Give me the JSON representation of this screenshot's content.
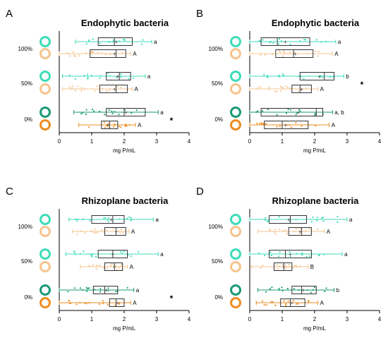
{
  "colors": {
    "green_light": "#3fdcb8",
    "green_dark": "#1a9a76",
    "orange_light": "#f6c48f",
    "orange_dark": "#ef8c22",
    "box_stroke": "#333333",
    "axis": "#000000"
  },
  "chart_data": [
    {
      "panel": "A",
      "title": "Endophytic bacteria",
      "type": "box",
      "xlabel": "mg P/mL",
      "xlim": [
        0,
        4
      ],
      "xticks": [
        "0",
        "1",
        "2",
        "3",
        "4"
      ],
      "groups": [
        "100%",
        "50%",
        "0%"
      ],
      "significance_marks": [
        {
          "group": "0%",
          "label": "*"
        }
      ],
      "series": [
        {
          "group": "100%",
          "series_color": "green_light",
          "min": 0.5,
          "q1": 1.2,
          "median": 1.7,
          "q3": 2.25,
          "max": 2.85,
          "mean": 1.75,
          "letter": "a"
        },
        {
          "group": "100%",
          "series_color": "orange_light",
          "min": 0.0,
          "q1": 0.95,
          "median": 1.75,
          "q3": 2.05,
          "max": 2.2,
          "mean": 1.7,
          "letter": "A"
        },
        {
          "group": "50%",
          "series_color": "green_light",
          "min": 0.1,
          "q1": 1.45,
          "median": 1.85,
          "q3": 2.2,
          "max": 2.65,
          "mean": 1.8,
          "letter": "a"
        },
        {
          "group": "50%",
          "series_color": "orange_light",
          "min": 0.1,
          "q1": 1.25,
          "median": 1.75,
          "q3": 2.1,
          "max": 2.25,
          "mean": 1.7,
          "letter": "A"
        },
        {
          "group": "0%",
          "series_color": "green_dark",
          "min": 0.45,
          "q1": 1.45,
          "median": 2.0,
          "q3": 2.65,
          "max": 3.05,
          "mean": 2.05,
          "letter": "a"
        },
        {
          "group": "0%",
          "series_color": "orange_dark",
          "min": 0.6,
          "q1": 1.3,
          "median": 1.55,
          "q3": 1.8,
          "max": 2.35,
          "mean": 1.5,
          "letter": "A"
        }
      ]
    },
    {
      "panel": "B",
      "title": "Endophytic bacteria",
      "type": "box",
      "xlabel": "mg P/mL",
      "xlim": [
        0,
        4
      ],
      "xticks": [
        "0",
        "1",
        "2",
        "3",
        "4"
      ],
      "groups": [
        "100%",
        "50%",
        "0%"
      ],
      "significance_marks": [
        {
          "group": "50%",
          "label": "*"
        }
      ],
      "series": [
        {
          "group": "100%",
          "series_color": "green_light",
          "min": 0.0,
          "q1": 0.35,
          "median": 0.85,
          "q3": 1.85,
          "max": 2.65,
          "mean": 1.1,
          "letter": "a"
        },
        {
          "group": "100%",
          "series_color": "orange_light",
          "min": 0.0,
          "q1": 0.8,
          "median": 1.35,
          "q3": 1.95,
          "max": 2.55,
          "mean": 1.4,
          "letter": "A"
        },
        {
          "group": "50%",
          "series_color": "green_light",
          "min": 0.0,
          "q1": 1.55,
          "median": 2.3,
          "q3": 2.6,
          "max": 2.9,
          "mean": 2.15,
          "letter": "b"
        },
        {
          "group": "50%",
          "series_color": "orange_light",
          "min": 0.0,
          "q1": 1.3,
          "median": 1.55,
          "q3": 1.9,
          "max": 2.1,
          "mean": 1.6,
          "letter": "A"
        },
        {
          "group": "0%",
          "series_color": "green_dark",
          "min": 0.0,
          "q1": 0.35,
          "median": 2.05,
          "q3": 2.25,
          "max": 2.55,
          "mean": 1.5,
          "letter": "a, b"
        },
        {
          "group": "0%",
          "series_color": "orange_dark",
          "min": 0.0,
          "q1": 0.45,
          "median": 1.0,
          "q3": 1.8,
          "max": 2.45,
          "mean": 1.1,
          "letter": "A"
        }
      ]
    },
    {
      "panel": "C",
      "title": "Rhizoplane bacteria",
      "type": "box",
      "xlabel": "mg P/mL",
      "xlim": [
        0,
        4
      ],
      "xticks": [
        "0",
        "1",
        "2",
        "3",
        "4"
      ],
      "groups": [
        "100%",
        "50%",
        "0%"
      ],
      "significance_marks": [
        {
          "group": "0%",
          "label": "*"
        }
      ],
      "series": [
        {
          "group": "100%",
          "series_color": "green_light",
          "min": 0.3,
          "q1": 1.0,
          "median": 1.65,
          "q3": 2.0,
          "max": 2.9,
          "mean": 1.6,
          "letter": "a"
        },
        {
          "group": "100%",
          "series_color": "orange_light",
          "min": 0.4,
          "q1": 1.4,
          "median": 1.75,
          "q3": 2.05,
          "max": 2.15,
          "mean": 1.75,
          "letter": "A"
        },
        {
          "group": "50%",
          "series_color": "green_light",
          "min": 0.2,
          "q1": 1.2,
          "median": 1.65,
          "q3": 2.1,
          "max": 3.05,
          "mean": 1.65,
          "letter": "a"
        },
        {
          "group": "50%",
          "series_color": "orange_light",
          "min": 0.65,
          "q1": 1.4,
          "median": 1.7,
          "q3": 1.95,
          "max": 2.1,
          "mean": 1.7,
          "letter": "A"
        },
        {
          "group": "0%",
          "series_color": "green_dark",
          "min": 0.0,
          "q1": 1.05,
          "median": 1.4,
          "q3": 1.8,
          "max": 2.3,
          "mean": 1.45,
          "letter": "a"
        },
        {
          "group": "0%",
          "series_color": "orange_dark",
          "min": 0.0,
          "q1": 1.55,
          "median": 1.75,
          "q3": 2.0,
          "max": 2.2,
          "mean": 1.8,
          "letter": "A"
        }
      ]
    },
    {
      "panel": "D",
      "title": "Rhizoplane bacteria",
      "type": "box",
      "xlabel": "mg P/mL",
      "xlim": [
        0,
        4
      ],
      "xticks": [
        "0",
        "1",
        "2",
        "3",
        "4"
      ],
      "groups": [
        "100%",
        "50%",
        "0%"
      ],
      "significance_marks": [],
      "series": [
        {
          "group": "100%",
          "series_color": "green_light",
          "min": 0.0,
          "q1": 0.6,
          "median": 1.25,
          "q3": 1.75,
          "max": 3.0,
          "mean": 1.2,
          "letter": "a"
        },
        {
          "group": "100%",
          "series_color": "orange_light",
          "min": 0.25,
          "q1": 1.2,
          "median": 1.6,
          "q3": 1.9,
          "max": 2.3,
          "mean": 1.55,
          "letter": "A"
        },
        {
          "group": "50%",
          "series_color": "green_light",
          "min": 0.0,
          "q1": 0.6,
          "median": 1.1,
          "q3": 1.9,
          "max": 2.85,
          "mean": 1.25,
          "letter": "a"
        },
        {
          "group": "50%",
          "series_color": "orange_light",
          "min": 0.05,
          "q1": 0.75,
          "median": 1.05,
          "q3": 1.3,
          "max": 1.8,
          "mean": 1.05,
          "letter": "B"
        },
        {
          "group": "0%",
          "series_color": "green_dark",
          "min": 0.25,
          "q1": 1.3,
          "median": 1.6,
          "q3": 2.05,
          "max": 2.6,
          "mean": 1.65,
          "letter": "b"
        },
        {
          "group": "0%",
          "series_color": "orange_dark",
          "min": 0.2,
          "q1": 0.95,
          "median": 1.25,
          "q3": 1.7,
          "max": 2.1,
          "mean": 1.3,
          "letter": "A"
        }
      ]
    }
  ]
}
